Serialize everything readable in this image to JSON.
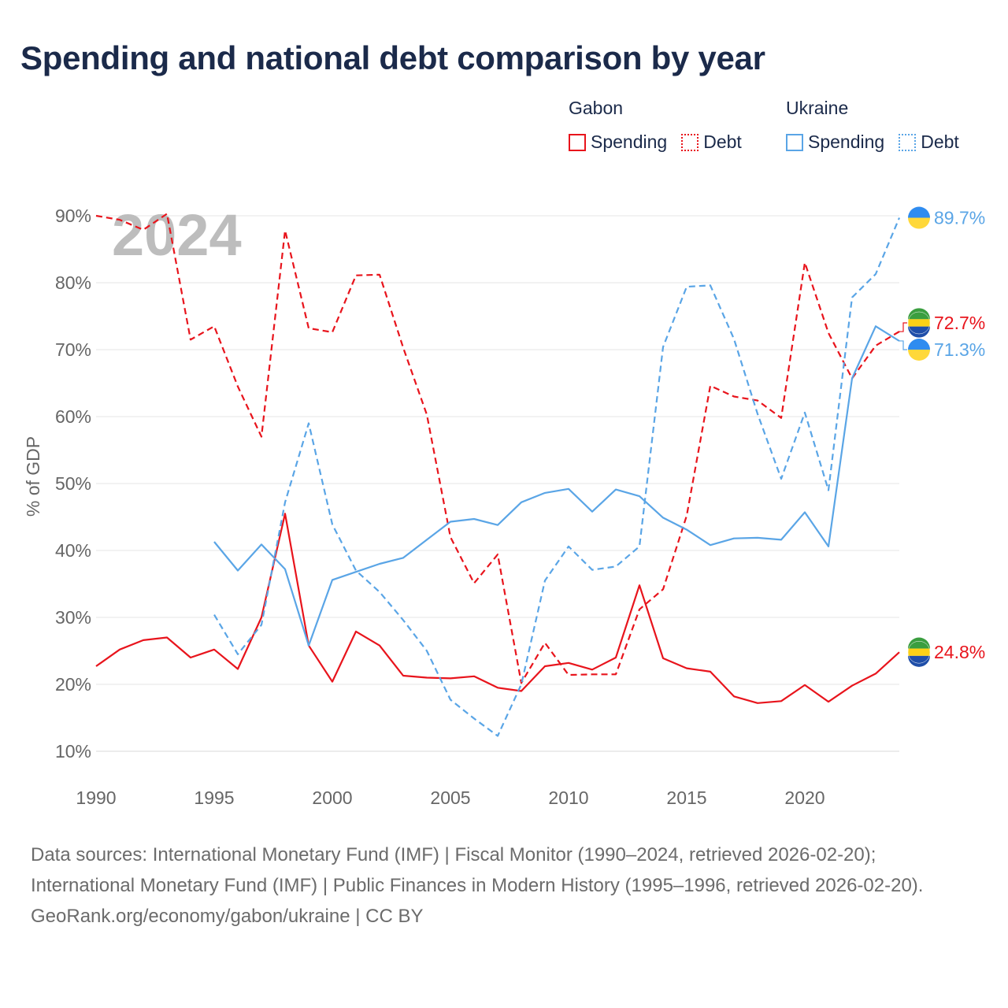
{
  "title": "Spending and national debt comparison by year",
  "legend": [
    {
      "group": "Gabon",
      "color": "#e8141c",
      "items": [
        {
          "label": "Spending",
          "style": "solid"
        },
        {
          "label": "Debt",
          "style": "dotted"
        }
      ]
    },
    {
      "group": "Ukraine",
      "color": "#5aa5e6",
      "items": [
        {
          "label": "Spending",
          "style": "solid"
        },
        {
          "label": "Debt",
          "style": "dotted"
        }
      ]
    }
  ],
  "footer": {
    "sources": "Data sources: International Monetary Fund (IMF) | Fiscal Monitor (1990–2024, retrieved 2026-02-20); International Monetary Fund (IMF) | Public Finances in Modern History (1995–1996, retrieved 2026-02-20).",
    "credit": "GeoRank.org/economy/gabon/ukraine | CC BY"
  },
  "chart_data": {
    "type": "line",
    "title": "Spending and national debt comparison by year",
    "year_watermark": "2024",
    "ylabel": "% of GDP",
    "xlabel": "",
    "xlim": [
      1990,
      2024
    ],
    "ylim": [
      10,
      90
    ],
    "xticks": [
      1990,
      1995,
      2000,
      2005,
      2010,
      2015,
      2020
    ],
    "yticks": [
      10,
      20,
      30,
      40,
      50,
      60,
      70,
      80,
      90
    ],
    "ytick_labels": [
      "10%",
      "20%",
      "30%",
      "40%",
      "50%",
      "60%",
      "70%",
      "80%",
      "90%"
    ],
    "grid": true,
    "series": [
      {
        "name": "Gabon Spending",
        "country": "Gabon",
        "metric": "Spending",
        "color": "#e8141c",
        "dash": false,
        "end_label": "24.8%",
        "points": [
          [
            1990,
            22.7
          ],
          [
            1991,
            25.2
          ],
          [
            1992,
            26.6
          ],
          [
            1993,
            27.0
          ],
          [
            1994,
            24.0
          ],
          [
            1995,
            25.2
          ],
          [
            1996,
            22.3
          ],
          [
            1997,
            30.0
          ],
          [
            1998,
            45.5
          ],
          [
            1999,
            25.8
          ],
          [
            2000,
            20.4
          ],
          [
            2001,
            27.9
          ],
          [
            2002,
            25.8
          ],
          [
            2003,
            21.3
          ],
          [
            2004,
            21.0
          ],
          [
            2005,
            20.9
          ],
          [
            2006,
            21.2
          ],
          [
            2007,
            19.5
          ],
          [
            2008,
            19.0
          ],
          [
            2009,
            22.7
          ],
          [
            2010,
            23.2
          ],
          [
            2011,
            22.2
          ],
          [
            2012,
            24.0
          ],
          [
            2013,
            34.8
          ],
          [
            2014,
            23.9
          ],
          [
            2015,
            22.4
          ],
          [
            2016,
            21.9
          ],
          [
            2017,
            18.2
          ],
          [
            2018,
            17.2
          ],
          [
            2019,
            17.5
          ],
          [
            2020,
            19.9
          ],
          [
            2021,
            17.4
          ],
          [
            2022,
            19.8
          ],
          [
            2023,
            21.6
          ],
          [
            2024,
            24.8
          ]
        ]
      },
      {
        "name": "Gabon Debt",
        "country": "Gabon",
        "metric": "Debt",
        "color": "#e8141c",
        "dash": true,
        "end_label": "72.7%",
        "points": [
          [
            1990,
            90.0
          ],
          [
            1991,
            89.4
          ],
          [
            1992,
            87.9
          ],
          [
            1993,
            90.3
          ],
          [
            1994,
            71.5
          ],
          [
            1995,
            73.5
          ],
          [
            1996,
            64.5
          ],
          [
            1997,
            57.0
          ],
          [
            1998,
            87.8
          ],
          [
            1999,
            73.2
          ],
          [
            2000,
            72.6
          ],
          [
            2001,
            81.1
          ],
          [
            2002,
            81.2
          ],
          [
            2003,
            70.3
          ],
          [
            2004,
            60.3
          ],
          [
            2005,
            42.0
          ],
          [
            2006,
            35.1
          ],
          [
            2007,
            39.4
          ],
          [
            2008,
            20.2
          ],
          [
            2009,
            26.2
          ],
          [
            2010,
            21.4
          ],
          [
            2011,
            21.5
          ],
          [
            2012,
            21.5
          ],
          [
            2013,
            31.2
          ],
          [
            2014,
            34.2
          ],
          [
            2015,
            45.2
          ],
          [
            2016,
            64.6
          ],
          [
            2017,
            63.0
          ],
          [
            2018,
            62.4
          ],
          [
            2019,
            59.8
          ],
          [
            2020,
            83.0
          ],
          [
            2021,
            72.5
          ],
          [
            2022,
            65.7
          ],
          [
            2023,
            70.6
          ],
          [
            2024,
            72.7
          ]
        ]
      },
      {
        "name": "Ukraine Spending",
        "country": "Ukraine",
        "metric": "Spending",
        "color": "#5aa5e6",
        "dash": false,
        "end_label": "71.3%",
        "points": [
          [
            1995,
            41.3
          ],
          [
            1996,
            37.0
          ],
          [
            1997,
            40.9
          ],
          [
            1998,
            37.2
          ],
          [
            1999,
            25.8
          ],
          [
            2000,
            35.6
          ],
          [
            2001,
            36.8
          ],
          [
            2002,
            38.0
          ],
          [
            2003,
            38.9
          ],
          [
            2004,
            41.6
          ],
          [
            2005,
            44.3
          ],
          [
            2006,
            44.7
          ],
          [
            2007,
            43.8
          ],
          [
            2008,
            47.2
          ],
          [
            2009,
            48.6
          ],
          [
            2010,
            49.2
          ],
          [
            2011,
            45.8
          ],
          [
            2012,
            49.1
          ],
          [
            2013,
            48.1
          ],
          [
            2014,
            44.9
          ],
          [
            2015,
            43.1
          ],
          [
            2016,
            40.8
          ],
          [
            2017,
            41.8
          ],
          [
            2018,
            41.9
          ],
          [
            2019,
            41.6
          ],
          [
            2020,
            45.7
          ],
          [
            2021,
            40.6
          ],
          [
            2022,
            65.7
          ],
          [
            2023,
            73.5
          ],
          [
            2024,
            71.3
          ]
        ]
      },
      {
        "name": "Ukraine Debt",
        "country": "Ukraine",
        "metric": "Debt",
        "color": "#5aa5e6",
        "dash": true,
        "end_label": "89.7%",
        "points": [
          [
            1995,
            30.4
          ],
          [
            1996,
            24.5
          ],
          [
            1997,
            28.9
          ],
          [
            1998,
            47.2
          ],
          [
            1999,
            59.0
          ],
          [
            2000,
            43.9
          ],
          [
            2001,
            37.0
          ],
          [
            2002,
            33.8
          ],
          [
            2003,
            29.6
          ],
          [
            2004,
            25.0
          ],
          [
            2005,
            17.7
          ],
          [
            2006,
            14.9
          ],
          [
            2007,
            12.3
          ],
          [
            2008,
            20.0
          ],
          [
            2009,
            35.5
          ],
          [
            2010,
            40.6
          ],
          [
            2011,
            37.1
          ],
          [
            2012,
            37.6
          ],
          [
            2013,
            40.6
          ],
          [
            2014,
            70.4
          ],
          [
            2015,
            79.4
          ],
          [
            2016,
            79.6
          ],
          [
            2017,
            71.6
          ],
          [
            2018,
            60.4
          ],
          [
            2019,
            50.7
          ],
          [
            2020,
            60.6
          ],
          [
            2021,
            49.0
          ],
          [
            2022,
            77.8
          ],
          [
            2023,
            81.3
          ],
          [
            2024,
            89.7
          ]
        ]
      }
    ]
  }
}
